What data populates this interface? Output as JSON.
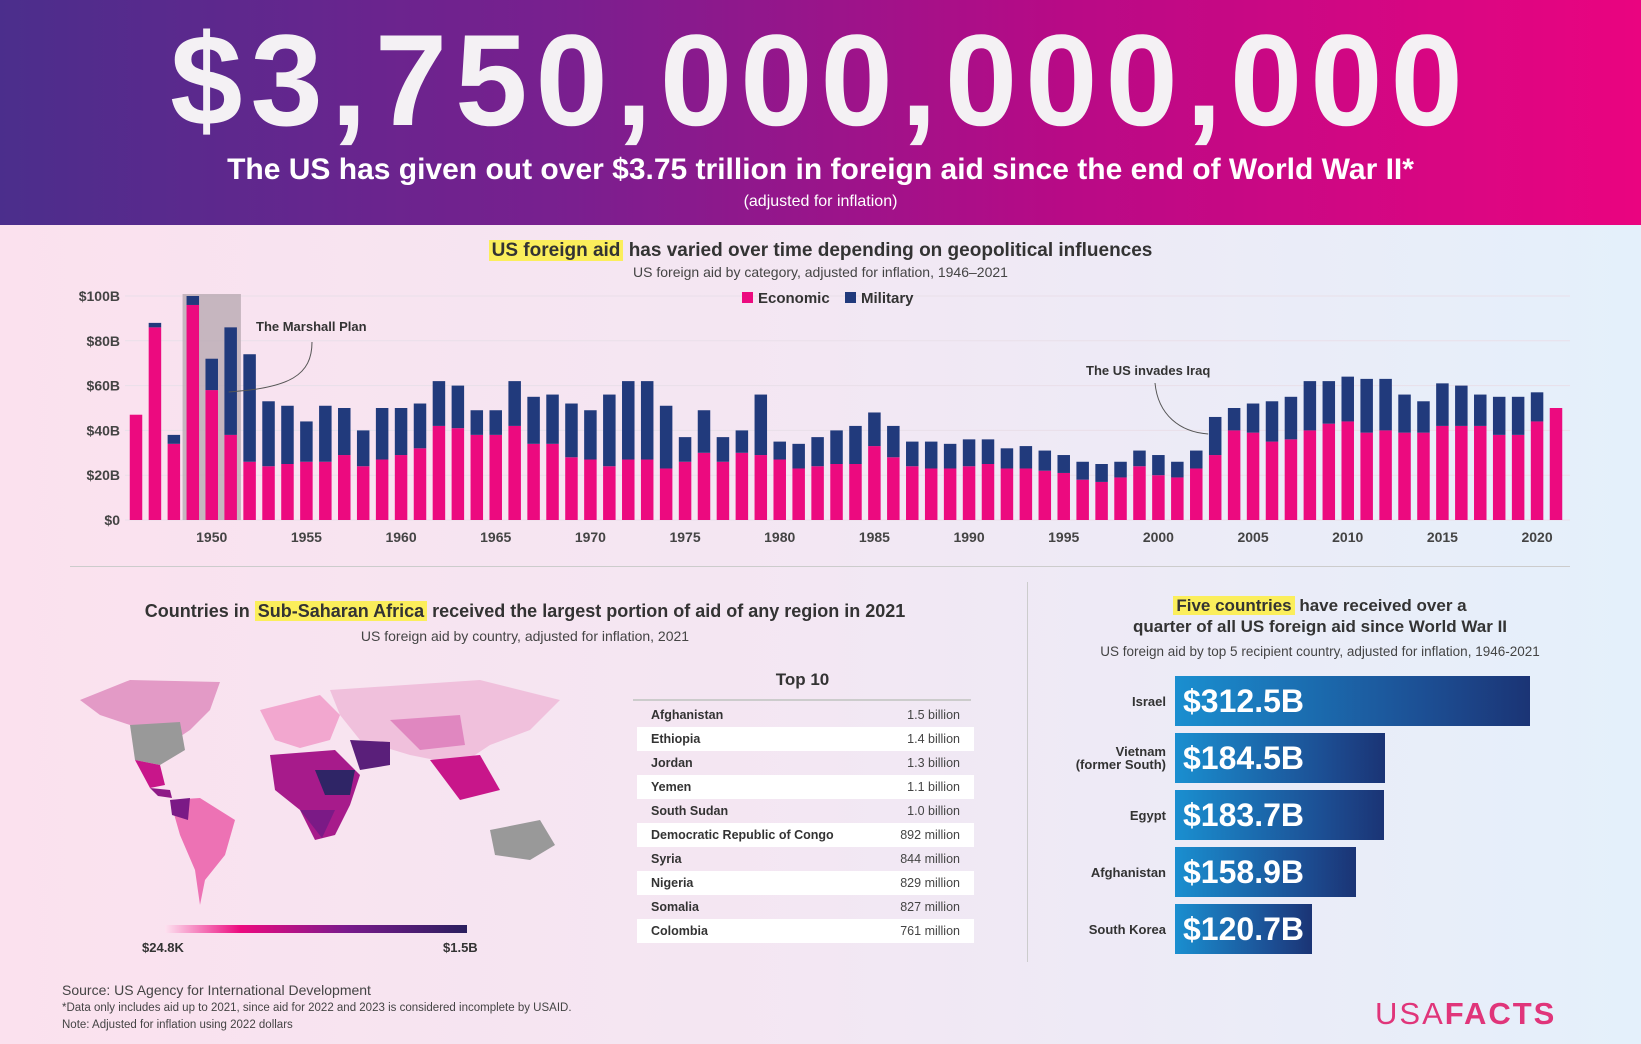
{
  "header": {
    "big_number": "$3,750,000,000,000",
    "subtitle": "The US has given out over $3.75 trillion in foreign aid since the end of World War II*",
    "note": "(adjusted for inflation)"
  },
  "colors": {
    "economic": "#ec0a7f",
    "military": "#213a7c",
    "highlight": "#fbee5b",
    "bar_gradient_start": "#1a8fd0",
    "bar_gradient_end": "#1b3475"
  },
  "chart_data": [
    {
      "type": "bar",
      "stacked": true,
      "title_highlight": "US foreign aid",
      "title_rest": " has varied over time depending on geopolitical influences",
      "subtitle": "US foreign aid by category, adjusted for inflation, 1946–2021",
      "legend_position": "top-center",
      "grid": true,
      "yticks": [
        "$0",
        "$20B",
        "$40B",
        "$60B",
        "$80B",
        "$100B"
      ],
      "ylim": [
        0,
        100
      ],
      "xticks": [
        "1950",
        "1955",
        "1960",
        "1965",
        "1970",
        "1975",
        "1980",
        "1985",
        "1990",
        "1995",
        "2000",
        "2005",
        "2010",
        "2015",
        "2020"
      ],
      "x_start": 1946,
      "series": [
        {
          "name": "Economic",
          "values": [
            47,
            86,
            34,
            96,
            58,
            38,
            26,
            24,
            25,
            26,
            26,
            29,
            24,
            27,
            29,
            32,
            42,
            41,
            38,
            38,
            42,
            34,
            34,
            28,
            27,
            24,
            27,
            27,
            23,
            26,
            30,
            26,
            30,
            29,
            27,
            23,
            24,
            25,
            25,
            33,
            28,
            24,
            23,
            23,
            24,
            25,
            23,
            23,
            22,
            21,
            18,
            17,
            19,
            24,
            20,
            19,
            23,
            29,
            40,
            39,
            35,
            36,
            40,
            43,
            44,
            39,
            40,
            39,
            39,
            42,
            42,
            42,
            38,
            38,
            44,
            50
          ]
        },
        {
          "name": "Military",
          "values": [
            0,
            2,
            4,
            4,
            14,
            48,
            48,
            29,
            26,
            18,
            25,
            21,
            16,
            23,
            21,
            20,
            20,
            19,
            11,
            11,
            20,
            21,
            22,
            24,
            22,
            32,
            35,
            35,
            28,
            11,
            19,
            11,
            10,
            27,
            8,
            11,
            13,
            15,
            17,
            15,
            14,
            11,
            12,
            11,
            12,
            11,
            9,
            10,
            9,
            8,
            8,
            8,
            7,
            7,
            9,
            7,
            8,
            17,
            10,
            13,
            18,
            19,
            22,
            19,
            20,
            24,
            23,
            17,
            14,
            19,
            18,
            14,
            17,
            17,
            13,
            0
          ]
        }
      ],
      "annotations": [
        {
          "label": "The Marshall Plan",
          "years": [
            1949,
            1951
          ]
        },
        {
          "label": "The US invades Iraq",
          "year": 2003
        }
      ]
    },
    {
      "type": "bar",
      "orientation": "horizontal",
      "title_highlight": "Five countries",
      "title_rest": " have received over a",
      "title_line2": "quarter of all US foreign aid since World War II",
      "subtitle": "US foreign aid by top 5 recipient country, adjusted for inflation, 1946-2021",
      "categories": [
        "Israel",
        "Vietnam (former South)",
        "Egypt",
        "Afghanistan",
        "South Korea"
      ],
      "category_lines": [
        [
          "Israel"
        ],
        [
          "Vietnam",
          "(former South)"
        ],
        [
          "Egypt"
        ],
        [
          "Afghanistan"
        ],
        [
          "South Korea"
        ]
      ],
      "values": [
        312.5,
        184.5,
        183.7,
        158.9,
        120.7
      ],
      "labels": [
        "$312.5B",
        "$184.5B",
        "$183.7B",
        "$158.9B",
        "$120.7B"
      ]
    }
  ],
  "map": {
    "title_pre": "Countries in ",
    "title_highlight": "Sub-Saharan Africa",
    "title_rest": " received the largest portion of aid of any region in 2021",
    "subtitle": "US foreign aid by country, adjusted for inflation, 2021",
    "scale_min": "$24.8K",
    "scale_max": "$1.5B",
    "scale_colors": [
      "#ec0a7f",
      "#7a1a8c",
      "#2a1f5e"
    ]
  },
  "top10": {
    "title": "Top 10",
    "rows": [
      {
        "country": "Afghanistan",
        "amount": "1.5 billion"
      },
      {
        "country": "Ethiopia",
        "amount": "1.4 billion"
      },
      {
        "country": "Jordan",
        "amount": "1.3 billion"
      },
      {
        "country": "Yemen",
        "amount": "1.1 billion"
      },
      {
        "country": "South Sudan",
        "amount": "1.0 billion"
      },
      {
        "country": "Democratic Republic of Congo",
        "amount": "892 million"
      },
      {
        "country": "Syria",
        "amount": "844 million"
      },
      {
        "country": "Nigeria",
        "amount": "829 million"
      },
      {
        "country": "Somalia",
        "amount": "827 million"
      },
      {
        "country": "Colombia",
        "amount": "761 million"
      }
    ]
  },
  "footer": {
    "source": "Source: US Agency for International Development",
    "note1": "*Data only includes aid up to 2021, since aid for 2022 and 2023 is considered incomplete by USAID.",
    "note2": "Note: Adjusted for inflation using 2022 dollars",
    "logo_a": "USA",
    "logo_b": "FACTS"
  }
}
